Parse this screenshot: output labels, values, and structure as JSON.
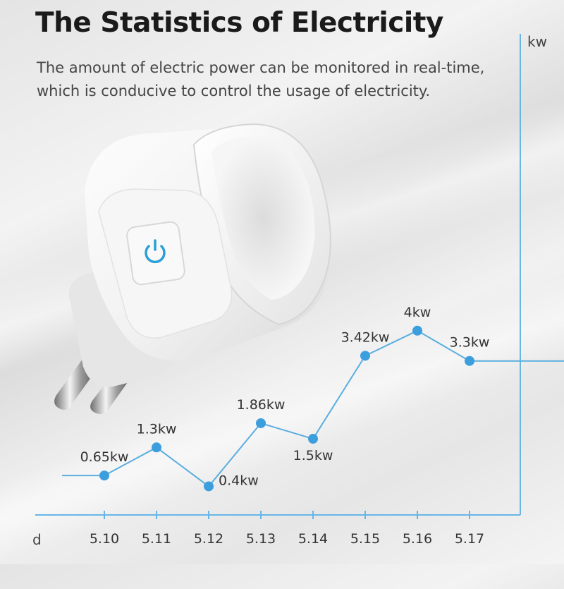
{
  "header": {
    "title": "The Statistics of Electricity",
    "subtitle_line1": "The amount of electric power can be monitored in real-time,",
    "subtitle_line2": "which is conducive to control the usage of electricity."
  },
  "product": {
    "name": "smart-plug",
    "button_icon": "power-icon",
    "accent_color": "#2a9fd8"
  },
  "chart_data": {
    "type": "line",
    "x_label": "d",
    "y_label": "kw",
    "categories": [
      "5.10",
      "5.11",
      "5.12",
      "5.13",
      "5.14",
      "5.15",
      "5.16",
      "5.17"
    ],
    "values": [
      0.65,
      1.3,
      0.4,
      1.86,
      1.5,
      3.42,
      4,
      3.3
    ],
    "data_labels": [
      "0.65kw",
      "1.3kw",
      "0.4kw",
      "1.86kw",
      "1.5kw",
      "3.42kw",
      "4kw",
      "3.3kw"
    ],
    "label_position": [
      "above",
      "above",
      "right",
      "above",
      "below",
      "above",
      "above",
      "above"
    ],
    "line_color": "#5aaee0",
    "marker_color": "#3d9ede",
    "axis_color": "#68b6e6",
    "grid": false,
    "legend": false
  }
}
